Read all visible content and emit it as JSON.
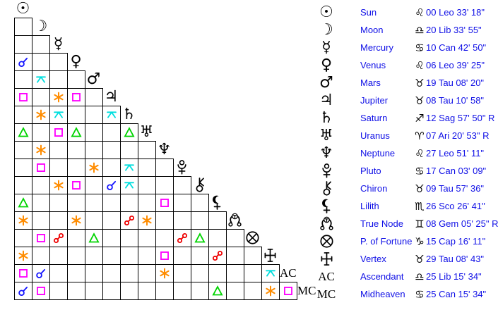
{
  "window": {
    "background": "#ffffff"
  },
  "panel_text_color": "#0f0fe6",
  "glyph_color": "#000000",
  "aspect_colors": {
    "conjunction": "#1414ff",
    "sextile": "#ff8c00",
    "square": "#ff00ff",
    "trine": "#00d400",
    "opposition": "#ee0000",
    "quincunx": "#00dede"
  },
  "planet_glyphs": {
    "sun": "☉",
    "moon": "☽",
    "mercury": "☿",
    "venus": "♀",
    "mars": "♂",
    "jupiter": "♃",
    "saturn": "♄",
    "uranus": "♅",
    "neptune": "♆"
  },
  "zodiac_glyphs": {
    "aries": "♈",
    "taurus": "♉",
    "gemini": "♊",
    "cancer": "♋",
    "leo": "♌",
    "libra": "♎",
    "scorpio": "♏",
    "sagittarius": "♐",
    "capricorn": "♑"
  },
  "diagonal_labels": {
    "ac": "AC",
    "mc": "MC"
  },
  "grid": {
    "header_planet": "sun",
    "rows": [
      {
        "planet": "moon",
        "aspects": {}
      },
      {
        "planet": "mercury",
        "aspects": {}
      },
      {
        "planet": "venus",
        "aspects": {
          "0": "conjunction"
        }
      },
      {
        "planet": "mars",
        "aspects": {
          "1": "quincunx"
        }
      },
      {
        "planet": "jupiter",
        "aspects": {
          "0": "square",
          "2": "sextile",
          "3": "square"
        }
      },
      {
        "planet": "saturn",
        "aspects": {
          "1": "sextile",
          "2": "quincunx",
          "5": "quincunx"
        }
      },
      {
        "planet": "uranus",
        "aspects": {
          "0": "trine",
          "2": "square",
          "3": "trine",
          "6": "trine"
        }
      },
      {
        "planet": "neptune",
        "aspects": {
          "1": "sextile"
        }
      },
      {
        "planet": "pluto",
        "aspects": {
          "1": "square",
          "4": "sextile",
          "6": "quincunx"
        }
      },
      {
        "planet": "chiron",
        "aspects": {
          "2": "sextile",
          "3": "square",
          "5": "conjunction",
          "6": "quincunx"
        }
      },
      {
        "planet": "lilith",
        "aspects": {
          "0": "trine",
          "8": "square"
        }
      },
      {
        "planet": "true-node",
        "aspects": {
          "0": "sextile",
          "3": "sextile",
          "6": "opposition",
          "7": "sextile"
        }
      },
      {
        "planet": "fortune",
        "aspects": {
          "1": "square",
          "2": "opposition",
          "4": "trine",
          "9": "opposition",
          "10": "trine"
        }
      },
      {
        "planet": "vertex",
        "aspects": {
          "0": "sextile",
          "8": "square",
          "11": "opposition"
        }
      },
      {
        "planet": "ac",
        "aspects": {
          "0": "square",
          "1": "conjunction",
          "8": "sextile",
          "14": "quincunx"
        }
      },
      {
        "planet": "mc",
        "aspects": {
          "0": "conjunction",
          "1": "square",
          "11": "trine",
          "14": "sextile",
          "15": "square"
        }
      }
    ]
  },
  "positions": [
    {
      "id": "sun",
      "name": "Sun",
      "sign": "leo",
      "position": "00 Leo 33' 18\""
    },
    {
      "id": "moon",
      "name": "Moon",
      "sign": "libra",
      "position": "20 Lib 33' 55\""
    },
    {
      "id": "mercury",
      "name": "Mercury",
      "sign": "cancer",
      "position": "10 Can 42' 50\""
    },
    {
      "id": "venus",
      "name": "Venus",
      "sign": "leo",
      "position": "06 Leo 39' 25\""
    },
    {
      "id": "mars",
      "name": "Mars",
      "sign": "taurus",
      "position": "19 Tau 08' 20\""
    },
    {
      "id": "jupiter",
      "name": "Jupiter",
      "sign": "taurus",
      "position": "08 Tau 10' 58\""
    },
    {
      "id": "saturn",
      "name": "Saturn",
      "sign": "sagittarius",
      "position": "12 Sag 57' 50\" R"
    },
    {
      "id": "uranus",
      "name": "Uranus",
      "sign": "aries",
      "position": "07 Ari 20' 53\" R"
    },
    {
      "id": "neptune",
      "name": "Neptune",
      "sign": "leo",
      "position": "27 Leo 51' 11\""
    },
    {
      "id": "pluto",
      "name": "Pluto",
      "sign": "cancer",
      "position": "17 Can 03' 09\""
    },
    {
      "id": "chiron",
      "name": "Chiron",
      "sign": "taurus",
      "position": "09 Tau 57' 36\""
    },
    {
      "id": "lilith",
      "name": "Lilith",
      "sign": "scorpio",
      "position": "26 Sco 26' 41\""
    },
    {
      "id": "true-node",
      "name": "True Node",
      "sign": "gemini",
      "position": "08 Gem 05' 25\" R"
    },
    {
      "id": "fortune",
      "name": "P. of Fortune",
      "sign": "capricorn",
      "position": "15 Cap 16' 11\""
    },
    {
      "id": "vertex",
      "name": "Vertex",
      "sign": "taurus",
      "position": "29 Tau 08' 43\""
    },
    {
      "id": "ac",
      "name": "Ascendant",
      "sign": "libra",
      "position": "25 Lib 15' 34\""
    },
    {
      "id": "mc",
      "name": "Midheaven",
      "sign": "cancer",
      "position": "25 Can 15' 34\""
    }
  ]
}
